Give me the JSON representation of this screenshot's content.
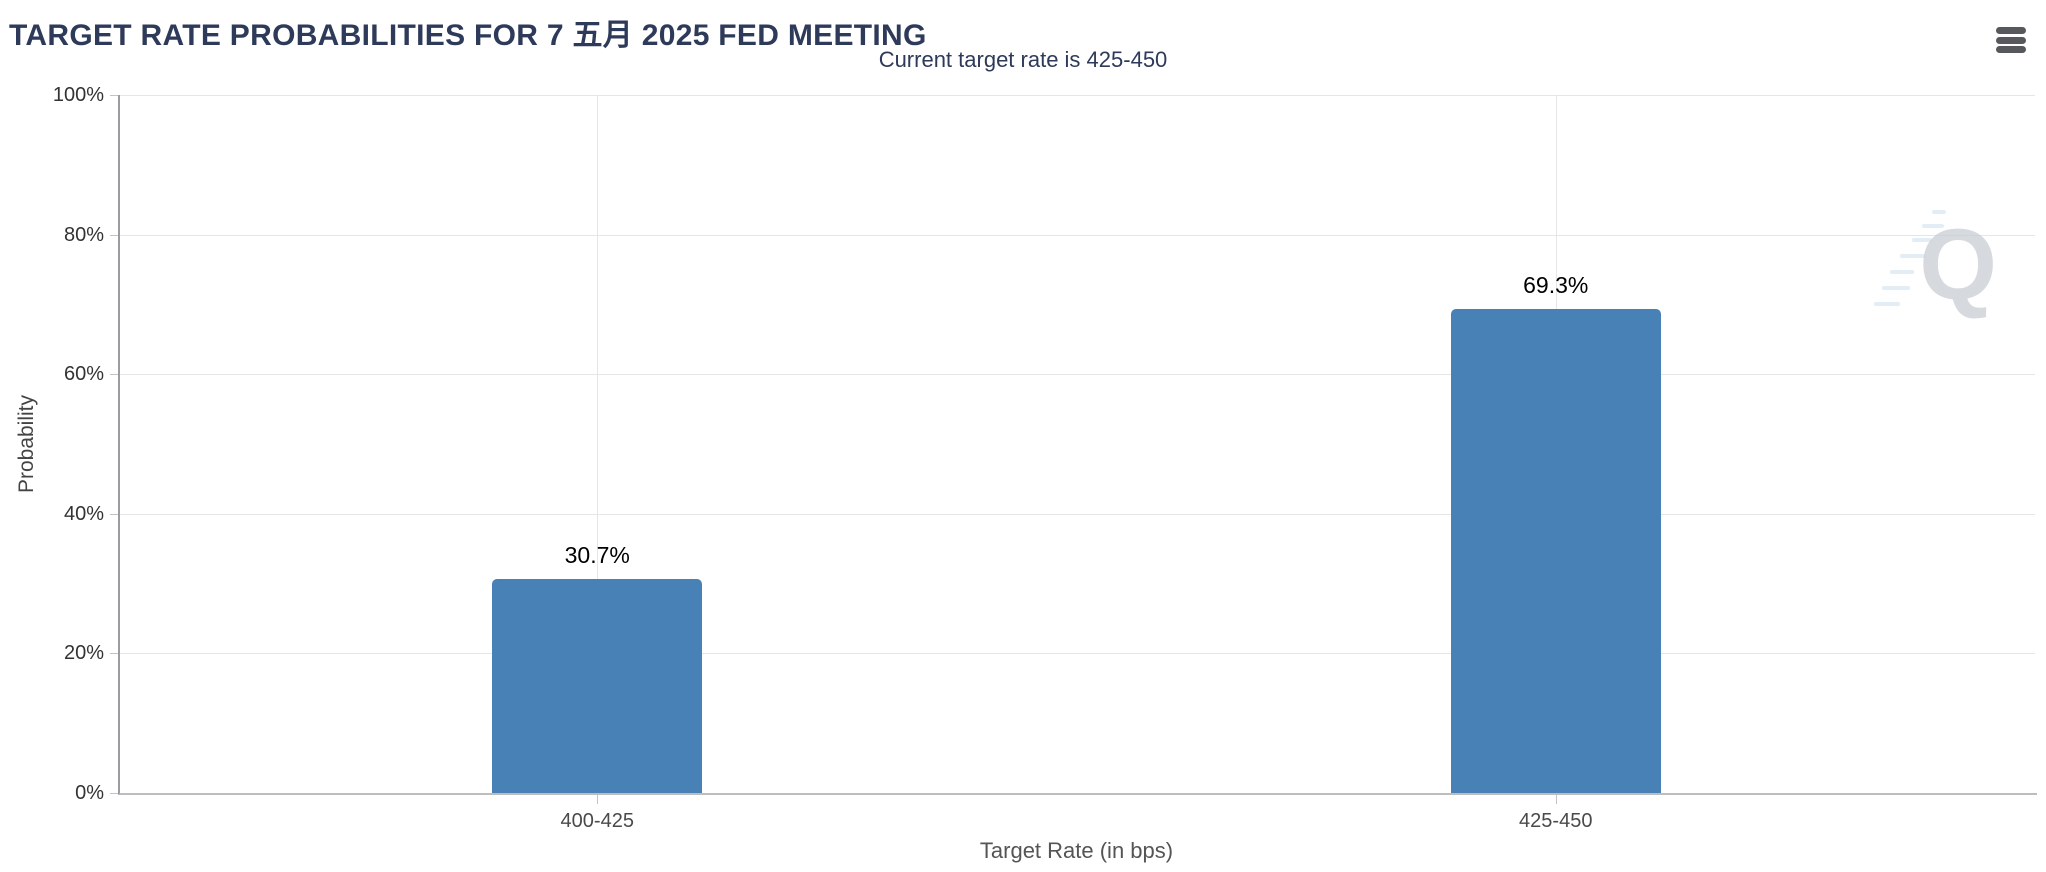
{
  "colors": {
    "title": "#2e3a59",
    "bar": "#4781b5",
    "grid": "#e6e6e6"
  },
  "toolbar": {
    "menu_icon": "hamburger-menu-icon"
  },
  "watermark": {
    "letter": "Q"
  },
  "chart_data": {
    "type": "bar",
    "title": "TARGET RATE PROBABILITIES FOR 7 五月 2025 FED MEETING",
    "subtitle": "Current target rate is 425-450",
    "categories": [
      "400-425",
      "425-450"
    ],
    "values": [
      30.7,
      69.3
    ],
    "value_labels": [
      "30.7%",
      "69.3%"
    ],
    "xlabel": "Target Rate (in bps)",
    "ylabel": "Probability",
    "ylim": [
      0,
      100
    ],
    "yticks": [
      0,
      20,
      40,
      60,
      80,
      100
    ],
    "ytick_labels": [
      "0%",
      "20%",
      "40%",
      "60%",
      "80%",
      "100%"
    ],
    "grid": true,
    "legend": false,
    "bar_color": "#4781b5"
  }
}
